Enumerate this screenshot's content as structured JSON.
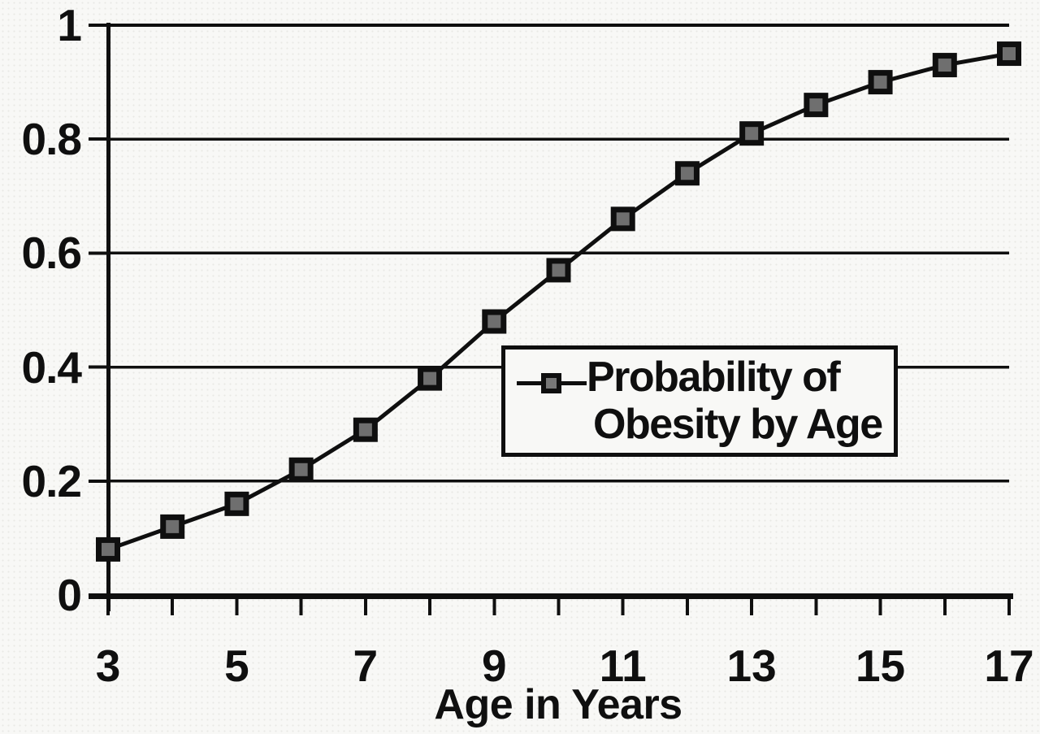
{
  "chart_data": {
    "type": "line",
    "title": "",
    "xlabel": "Age in Years",
    "ylabel": "",
    "xlim": [
      3,
      17
    ],
    "ylim": [
      0,
      1
    ],
    "x": [
      3,
      4,
      5,
      6,
      7,
      8,
      9,
      10,
      11,
      12,
      13,
      14,
      15,
      16,
      17
    ],
    "series": [
      {
        "name": "Probability of Obesity by Age",
        "values": [
          0.08,
          0.12,
          0.16,
          0.22,
          0.29,
          0.38,
          0.48,
          0.57,
          0.66,
          0.74,
          0.81,
          0.86,
          0.9,
          0.93,
          0.95
        ]
      }
    ],
    "x_major_ticks": [
      3,
      4,
      5,
      6,
      7,
      8,
      9,
      10,
      11,
      12,
      13,
      14,
      15,
      16,
      17
    ],
    "x_labeled_ticks": [
      {
        "value": 3,
        "label": "3"
      },
      {
        "value": 5,
        "label": "5"
      },
      {
        "value": 7,
        "label": "7"
      },
      {
        "value": 9,
        "label": "9"
      },
      {
        "value": 11,
        "label": "11"
      },
      {
        "value": 13,
        "label": "13"
      },
      {
        "value": 15,
        "label": "15"
      },
      {
        "value": 17,
        "label": "17"
      }
    ],
    "y_ticks": [
      {
        "value": 0,
        "label": "0"
      },
      {
        "value": 0.2,
        "label": "0.2"
      },
      {
        "value": 0.4,
        "label": "0.4"
      },
      {
        "value": 0.6,
        "label": "0.6"
      },
      {
        "value": 0.8,
        "label": "0.8"
      },
      {
        "value": 1,
        "label": "1"
      }
    ],
    "grid": "horizontal",
    "legend": {
      "lines": [
        "Probability of",
        "Obesity by Age"
      ],
      "position": "middle-right",
      "style": "boxed",
      "marker": "filled-square-on-line"
    },
    "marker": "square",
    "colors": {
      "ink": "#0f0f0f",
      "marker_core": "#6f6f6f",
      "paper": "#f8f8f6"
    }
  }
}
